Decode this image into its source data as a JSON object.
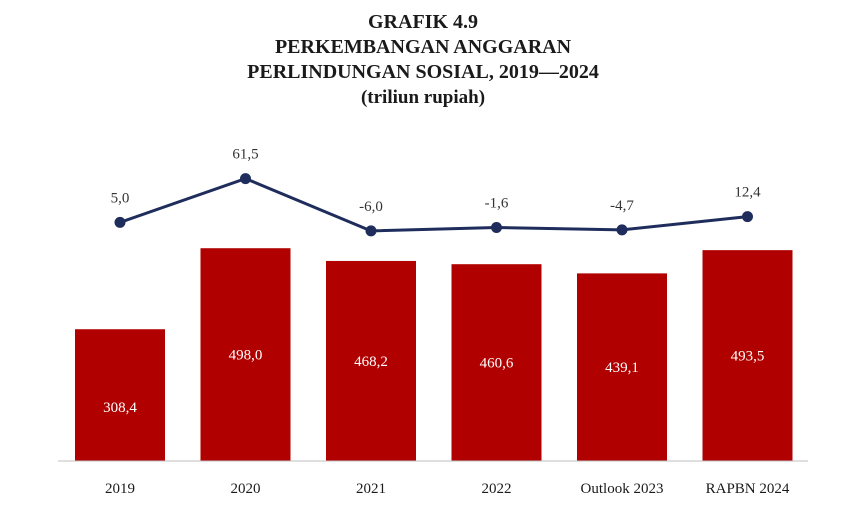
{
  "title": {
    "line1": "GRAFIK 4.9",
    "line2": "PERKEMBANGAN ANGGARAN",
    "line3": "PERLINDUNGAN SOSIAL, 2019—2024",
    "unit": "(triliun rupiah)"
  },
  "chart_data": {
    "type": "bar",
    "categories": [
      "2019",
      "2020",
      "2021",
      "2022",
      "Outlook 2023",
      "RAPBN 2024"
    ],
    "series": [
      {
        "type": "bar",
        "values": [
          308.4,
          498.0,
          468.2,
          460.6,
          439.1,
          493.5
        ],
        "labels": [
          "308,4",
          "498,0",
          "468,2",
          "460,6",
          "439,1",
          "493,5"
        ],
        "color": "#b00000"
      },
      {
        "type": "line",
        "values": [
          5.0,
          61.5,
          -6.0,
          -1.6,
          -4.7,
          12.4
        ],
        "labels": [
          "5,0",
          "61,5",
          "-6,0",
          "-1,6",
          "-4,7",
          "12,4"
        ],
        "color": "#1f2d5c"
      }
    ],
    "ylim": [
      0,
      550
    ],
    "y2lim": [
      -10,
      70
    ],
    "grid": false,
    "legend": "none"
  }
}
